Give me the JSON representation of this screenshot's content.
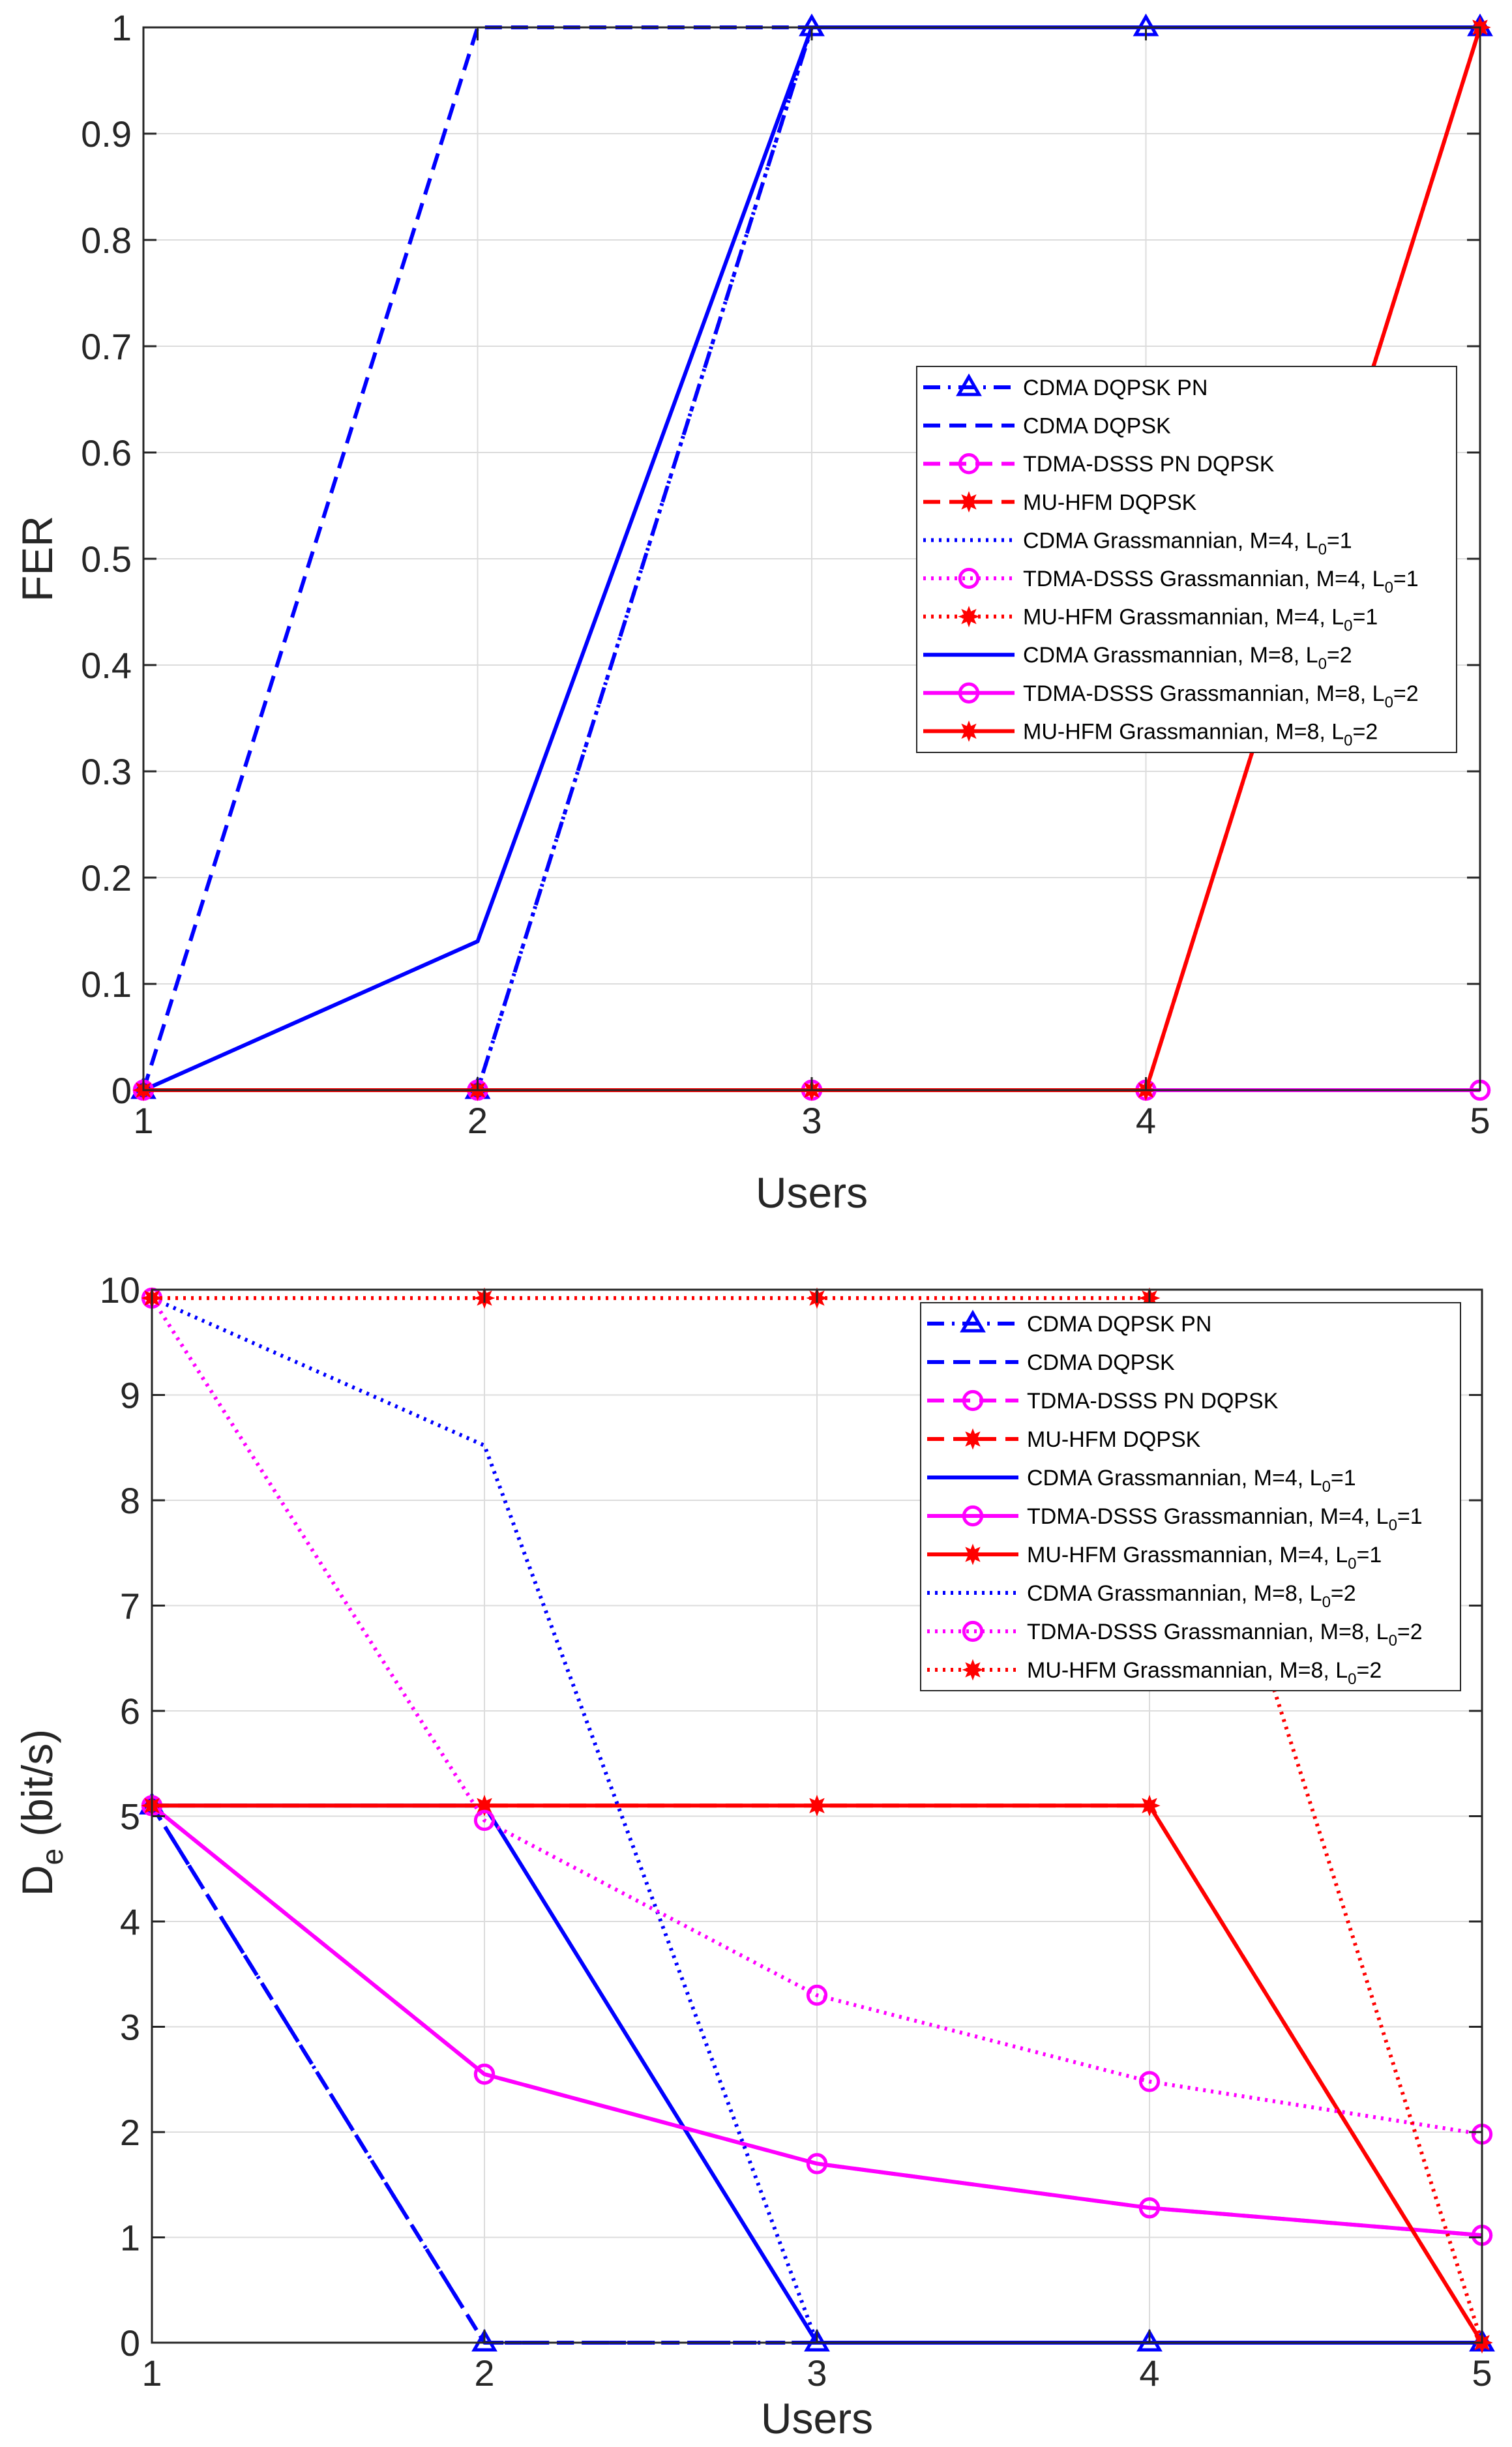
{
  "chart_data": [
    {
      "type": "line",
      "xlabel": "Users",
      "ylabel": "FER",
      "x": [
        1,
        2,
        3,
        4,
        5
      ],
      "xlim": [
        1,
        5
      ],
      "ylim": [
        0,
        1
      ],
      "xticks": [
        "1",
        "2",
        "3",
        "4",
        "5"
      ],
      "yticks": [
        "0",
        "0.1",
        "0.2",
        "0.3",
        "0.4",
        "0.5",
        "0.6",
        "0.7",
        "0.8",
        "0.9",
        "1"
      ],
      "grid": true,
      "legend_position": "center-right",
      "series": [
        {
          "name": "CDMA DQPSK PN",
          "label_main": "CDMA DQPSK PN",
          "label_sub": "",
          "label_tail": "",
          "color": "#0000ff",
          "style": "dashdot",
          "marker": "triangle",
          "values": [
            0,
            0,
            1,
            1,
            1
          ]
        },
        {
          "name": "CDMA DQPSK",
          "label_main": "CDMA DQPSK",
          "label_sub": "",
          "label_tail": "",
          "color": "#0000ff",
          "style": "dashed",
          "marker": "none",
          "values": [
            0,
            1,
            1,
            1,
            1
          ]
        },
        {
          "name": "TDMA-DSSS PN DQPSK",
          "label_main": "TDMA-DSSS PN DQPSK",
          "label_sub": "",
          "label_tail": "",
          "color": "#ff00ff",
          "style": "dashed",
          "marker": "circle",
          "values": [
            0,
            0,
            0,
            0,
            0
          ]
        },
        {
          "name": "MU-HFM DQPSK",
          "label_main": "MU-HFM DQPSK",
          "label_sub": "",
          "label_tail": "",
          "color": "#ff0000",
          "style": "dashed",
          "marker": "star",
          "values": [
            0,
            0,
            0,
            0,
            1
          ]
        },
        {
          "name": "CDMA Grassmannian, M=4, L0=1",
          "label_main": "CDMA Grassmannian, M=4, L",
          "label_sub": "0",
          "label_tail": "=1",
          "color": "#0000ff",
          "style": "dotted",
          "marker": "none",
          "values": [
            0,
            0,
            1,
            1,
            1
          ]
        },
        {
          "name": "TDMA-DSSS Grassmannian, M=4, L0=1",
          "label_main": "TDMA-DSSS Grassmannian, M=4, L",
          "label_sub": "0",
          "label_tail": "=1",
          "color": "#ff00ff",
          "style": "dotted",
          "marker": "circle",
          "values": [
            0,
            0,
            0,
            0,
            0
          ]
        },
        {
          "name": "MU-HFM Grassmannian, M=4, L0=1",
          "label_main": "MU-HFM Grassmannian, M=4, L",
          "label_sub": "0",
          "label_tail": "=1",
          "color": "#ff0000",
          "style": "dotted",
          "marker": "star",
          "values": [
            0,
            0,
            0,
            0,
            1
          ]
        },
        {
          "name": "CDMA Grassmannian, M=8, L0=2",
          "label_main": "CDMA Grassmannian, M=8, L",
          "label_sub": "0",
          "label_tail": "=2",
          "color": "#0000ff",
          "style": "solid",
          "marker": "none",
          "values": [
            0,
            0.14,
            1,
            1,
            1
          ]
        },
        {
          "name": "TDMA-DSSS Grassmannian, M=8, L0=2",
          "label_main": "TDMA-DSSS Grassmannian, M=8, L",
          "label_sub": "0",
          "label_tail": "=2",
          "color": "#ff00ff",
          "style": "solid",
          "marker": "circle",
          "values": [
            0,
            0,
            0,
            0,
            0
          ]
        },
        {
          "name": "MU-HFM Grassmannian, M=8, L0=2",
          "label_main": "MU-HFM Grassmannian, M=8, L",
          "label_sub": "0",
          "label_tail": "=2",
          "color": "#ff0000",
          "style": "solid",
          "marker": "star",
          "values": [
            0,
            0,
            0,
            0,
            1
          ]
        }
      ]
    },
    {
      "type": "line",
      "xlabel": "Users",
      "ylabel_main": "D",
      "ylabel_sub": "e",
      "ylabel_tail": "(bit/s)",
      "x": [
        1,
        2,
        3,
        4,
        5
      ],
      "xlim": [
        1,
        5
      ],
      "ylim": [
        0,
        10
      ],
      "xticks": [
        "1",
        "2",
        "3",
        "4",
        "5"
      ],
      "yticks": [
        "0",
        "1",
        "2",
        "3",
        "4",
        "5",
        "6",
        "7",
        "8",
        "9",
        "10"
      ],
      "grid": true,
      "legend_position": "top-right",
      "series": [
        {
          "name": "CDMA DQPSK PN",
          "label_main": "CDMA DQPSK PN",
          "label_sub": "",
          "label_tail": "",
          "color": "#0000ff",
          "style": "dashdot",
          "marker": "triangle",
          "values": [
            5.1,
            0,
            0,
            0,
            0
          ]
        },
        {
          "name": "CDMA DQPSK",
          "label_main": "CDMA DQPSK",
          "label_sub": "",
          "label_tail": "",
          "color": "#0000ff",
          "style": "dashed",
          "marker": "none",
          "values": [
            5.1,
            0,
            0,
            0,
            0
          ]
        },
        {
          "name": "TDMA-DSSS PN DQPSK",
          "label_main": "TDMA-DSSS PN DQPSK",
          "label_sub": "",
          "label_tail": "",
          "color": "#ff00ff",
          "style": "dashed",
          "marker": "circle",
          "values": [
            5.1,
            2.55,
            1.7,
            1.28,
            1.02
          ]
        },
        {
          "name": "MU-HFM DQPSK",
          "label_main": "MU-HFM DQPSK",
          "label_sub": "",
          "label_tail": "",
          "color": "#ff0000",
          "style": "dashed",
          "marker": "star",
          "values": [
            5.1,
            5.1,
            5.1,
            5.1,
            0
          ]
        },
        {
          "name": "CDMA Grassmannian, M=4, L0=1",
          "label_main": "CDMA Grassmannian, M=4, L",
          "label_sub": "0",
          "label_tail": "=1",
          "color": "#0000ff",
          "style": "solid",
          "marker": "none",
          "values": [
            5.1,
            5.1,
            0,
            0,
            0
          ]
        },
        {
          "name": "TDMA-DSSS Grassmannian, M=4, L0=1",
          "label_main": "TDMA-DSSS Grassmannian, M=4, L",
          "label_sub": "0",
          "label_tail": "=1",
          "color": "#ff00ff",
          "style": "solid",
          "marker": "circle",
          "values": [
            5.1,
            2.55,
            1.7,
            1.28,
            1.02
          ]
        },
        {
          "name": "MU-HFM Grassmannian, M=4, L0=1",
          "label_main": "MU-HFM Grassmannian, M=4, L",
          "label_sub": "0",
          "label_tail": "=1",
          "color": "#ff0000",
          "style": "solid",
          "marker": "star",
          "values": [
            5.1,
            5.1,
            5.1,
            5.1,
            0
          ]
        },
        {
          "name": "CDMA Grassmannian, M=8, L0=2",
          "label_main": "CDMA Grassmannian, M=8, L",
          "label_sub": "0",
          "label_tail": "=2",
          "color": "#0000ff",
          "style": "dotted",
          "marker": "none",
          "values": [
            9.92,
            8.52,
            0,
            0,
            0
          ]
        },
        {
          "name": "TDMA-DSSS Grassmannian, M=8, L0=2",
          "label_main": "TDMA-DSSS Grassmannian, M=8, L",
          "label_sub": "0",
          "label_tail": "=2",
          "color": "#ff00ff",
          "style": "dotted",
          "marker": "circle",
          "values": [
            9.92,
            4.96,
            3.3,
            2.48,
            1.98
          ]
        },
        {
          "name": "MU-HFM Grassmannian, M=8, L0=2",
          "label_main": "MU-HFM Grassmannian, M=8, L",
          "label_sub": "0",
          "label_tail": "=2",
          "color": "#ff0000",
          "style": "dotted",
          "marker": "star",
          "values": [
            9.92,
            9.92,
            9.92,
            9.92,
            0
          ]
        }
      ]
    }
  ]
}
